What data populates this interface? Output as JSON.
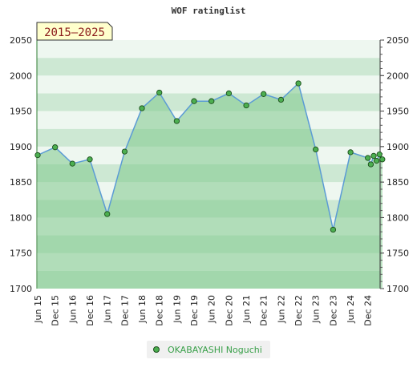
{
  "chart_data": {
    "type": "area",
    "title": "WOF ratinglist",
    "period_label": "2015–2025",
    "ylim": [
      1700,
      2050
    ],
    "y_ticks": [
      1700,
      1750,
      1800,
      1850,
      1900,
      1950,
      2000,
      2050
    ],
    "y_axis_both_sides": true,
    "x_tick_labels": [
      "Jun 15",
      "Dec 15",
      "Jun 16",
      "Dec 16",
      "Jun 17",
      "Dec 17",
      "Jun 18",
      "Dec 18",
      "Jun 19",
      "Dec 19",
      "Jun 20",
      "Dec 20",
      "Jun 21",
      "Dec 21",
      "Jun 22",
      "Dec 22",
      "Jun 23",
      "Dec 23",
      "Jun 24",
      "Dec 24"
    ],
    "series": [
      {
        "name": "OKABAYASHI Noguchi",
        "x": [
          "Jun 15",
          "Dec 15",
          "Jun 16",
          "Dec 16",
          "Jun 17",
          "Dec 17",
          "Jun 18",
          "Dec 18",
          "Jun 19",
          "Dec 19",
          "Jun 20",
          "Dec 20",
          "Jun 21",
          "Dec 21",
          "Jun 22",
          "Dec 22",
          "Jun 23",
          "Dec 23",
          "Jun 24",
          "Dec 24",
          "Jan 25",
          "Feb 25",
          "Mar 25",
          "Apr 25",
          "May 25"
        ],
        "values": [
          1888,
          1899,
          1876,
          1882,
          1805,
          1893,
          1954,
          1976,
          1936,
          1964,
          1964,
          1975,
          1958,
          1974,
          1966,
          1989,
          1896,
          1783,
          1892,
          1884,
          1875,
          1887,
          1880,
          1889,
          1882
        ]
      }
    ],
    "legend_position": "bottom-center",
    "grid": true,
    "colors": {
      "line": "#5b9bd5",
      "fill": "rgba(128,200,140,0.55)",
      "marker": "#4caf50",
      "marker_edge": "#1b4d1b",
      "band_light": "#eef7f0",
      "band_dark": "#cde8d3",
      "legend_text": "#3aa04a"
    }
  }
}
